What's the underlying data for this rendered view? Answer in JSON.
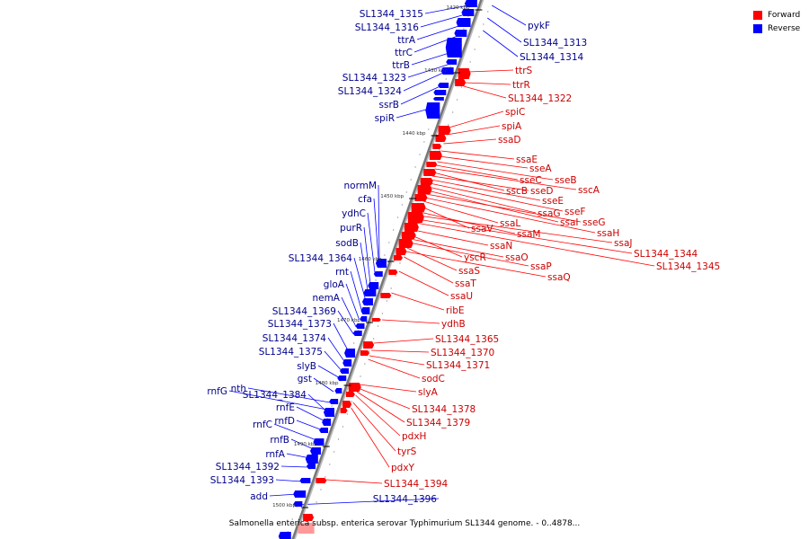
{
  "colors": {
    "forward": "#ff0000",
    "reverse": "#0000ff",
    "axis": "#777777",
    "forward_label": "#cc0000",
    "reverse_label": "#00008b"
  },
  "legend": {
    "forward": "Forward",
    "reverse": "Reverse"
  },
  "caption": "Salmonella enterica subsp. enterica serovar Typhimurium SL1344 genome. - 0..4878...",
  "axis_ticks": [
    "1420 kbp",
    "1430 kbp",
    "1440 kbp",
    "1450 kbp",
    "1460 kbp",
    "1470 kbp",
    "1480 kbp",
    "1490 kbp",
    "1500 kbp"
  ],
  "reverse_genes": [
    "SL1344_1315",
    "SL1344_1316",
    "ttrA",
    "ttrC",
    "ttrB",
    "SL1344_1323",
    "SL1344_1324",
    "ssrB",
    "spiR",
    "normM",
    "cfa",
    "ydhC",
    "purR",
    "sodB",
    "SL1344_1364",
    "rnt",
    "gloA",
    "nemA",
    "SL1344_1369",
    "SL1344_1373",
    "SL1344_1374",
    "SL1344_1375",
    "slyB",
    "gst",
    "nth",
    "rnfG",
    "SL1344_1384",
    "rnfE",
    "rnfD",
    "rnfC",
    "rnfB",
    "rnfA",
    "SL1344_1392",
    "SL1344_1393",
    "add",
    "SL1344_1396",
    "pykF",
    "SL1344_1313",
    "SL1344_1314"
  ],
  "forward_genes": [
    "ttrS",
    "ttrR",
    "SL1344_1322",
    "spiC",
    "spiA",
    "ssaD",
    "ssaE",
    "sseA",
    "sseB",
    "sseC",
    "sscA",
    "sscB",
    "sseD",
    "sseE",
    "sseF",
    "sseG",
    "ssaG",
    "ssaI",
    "ssaH",
    "ssaL",
    "ssaV",
    "ssaM",
    "ssaJ",
    "SL1344_1344",
    "SL1344_1345",
    "ssaN",
    "yscR",
    "ssaO",
    "ssaP",
    "ssaS",
    "ssaQ",
    "ssaT",
    "ssaU",
    "ribE",
    "ydhB",
    "SL1344_1365",
    "SL1344_1370",
    "SL1344_1371",
    "sodC",
    "slyA",
    "SL1344_1378",
    "SL1344_1379",
    "pdxH",
    "tyrS",
    "pdxY",
    "SL1344_1394"
  ]
}
